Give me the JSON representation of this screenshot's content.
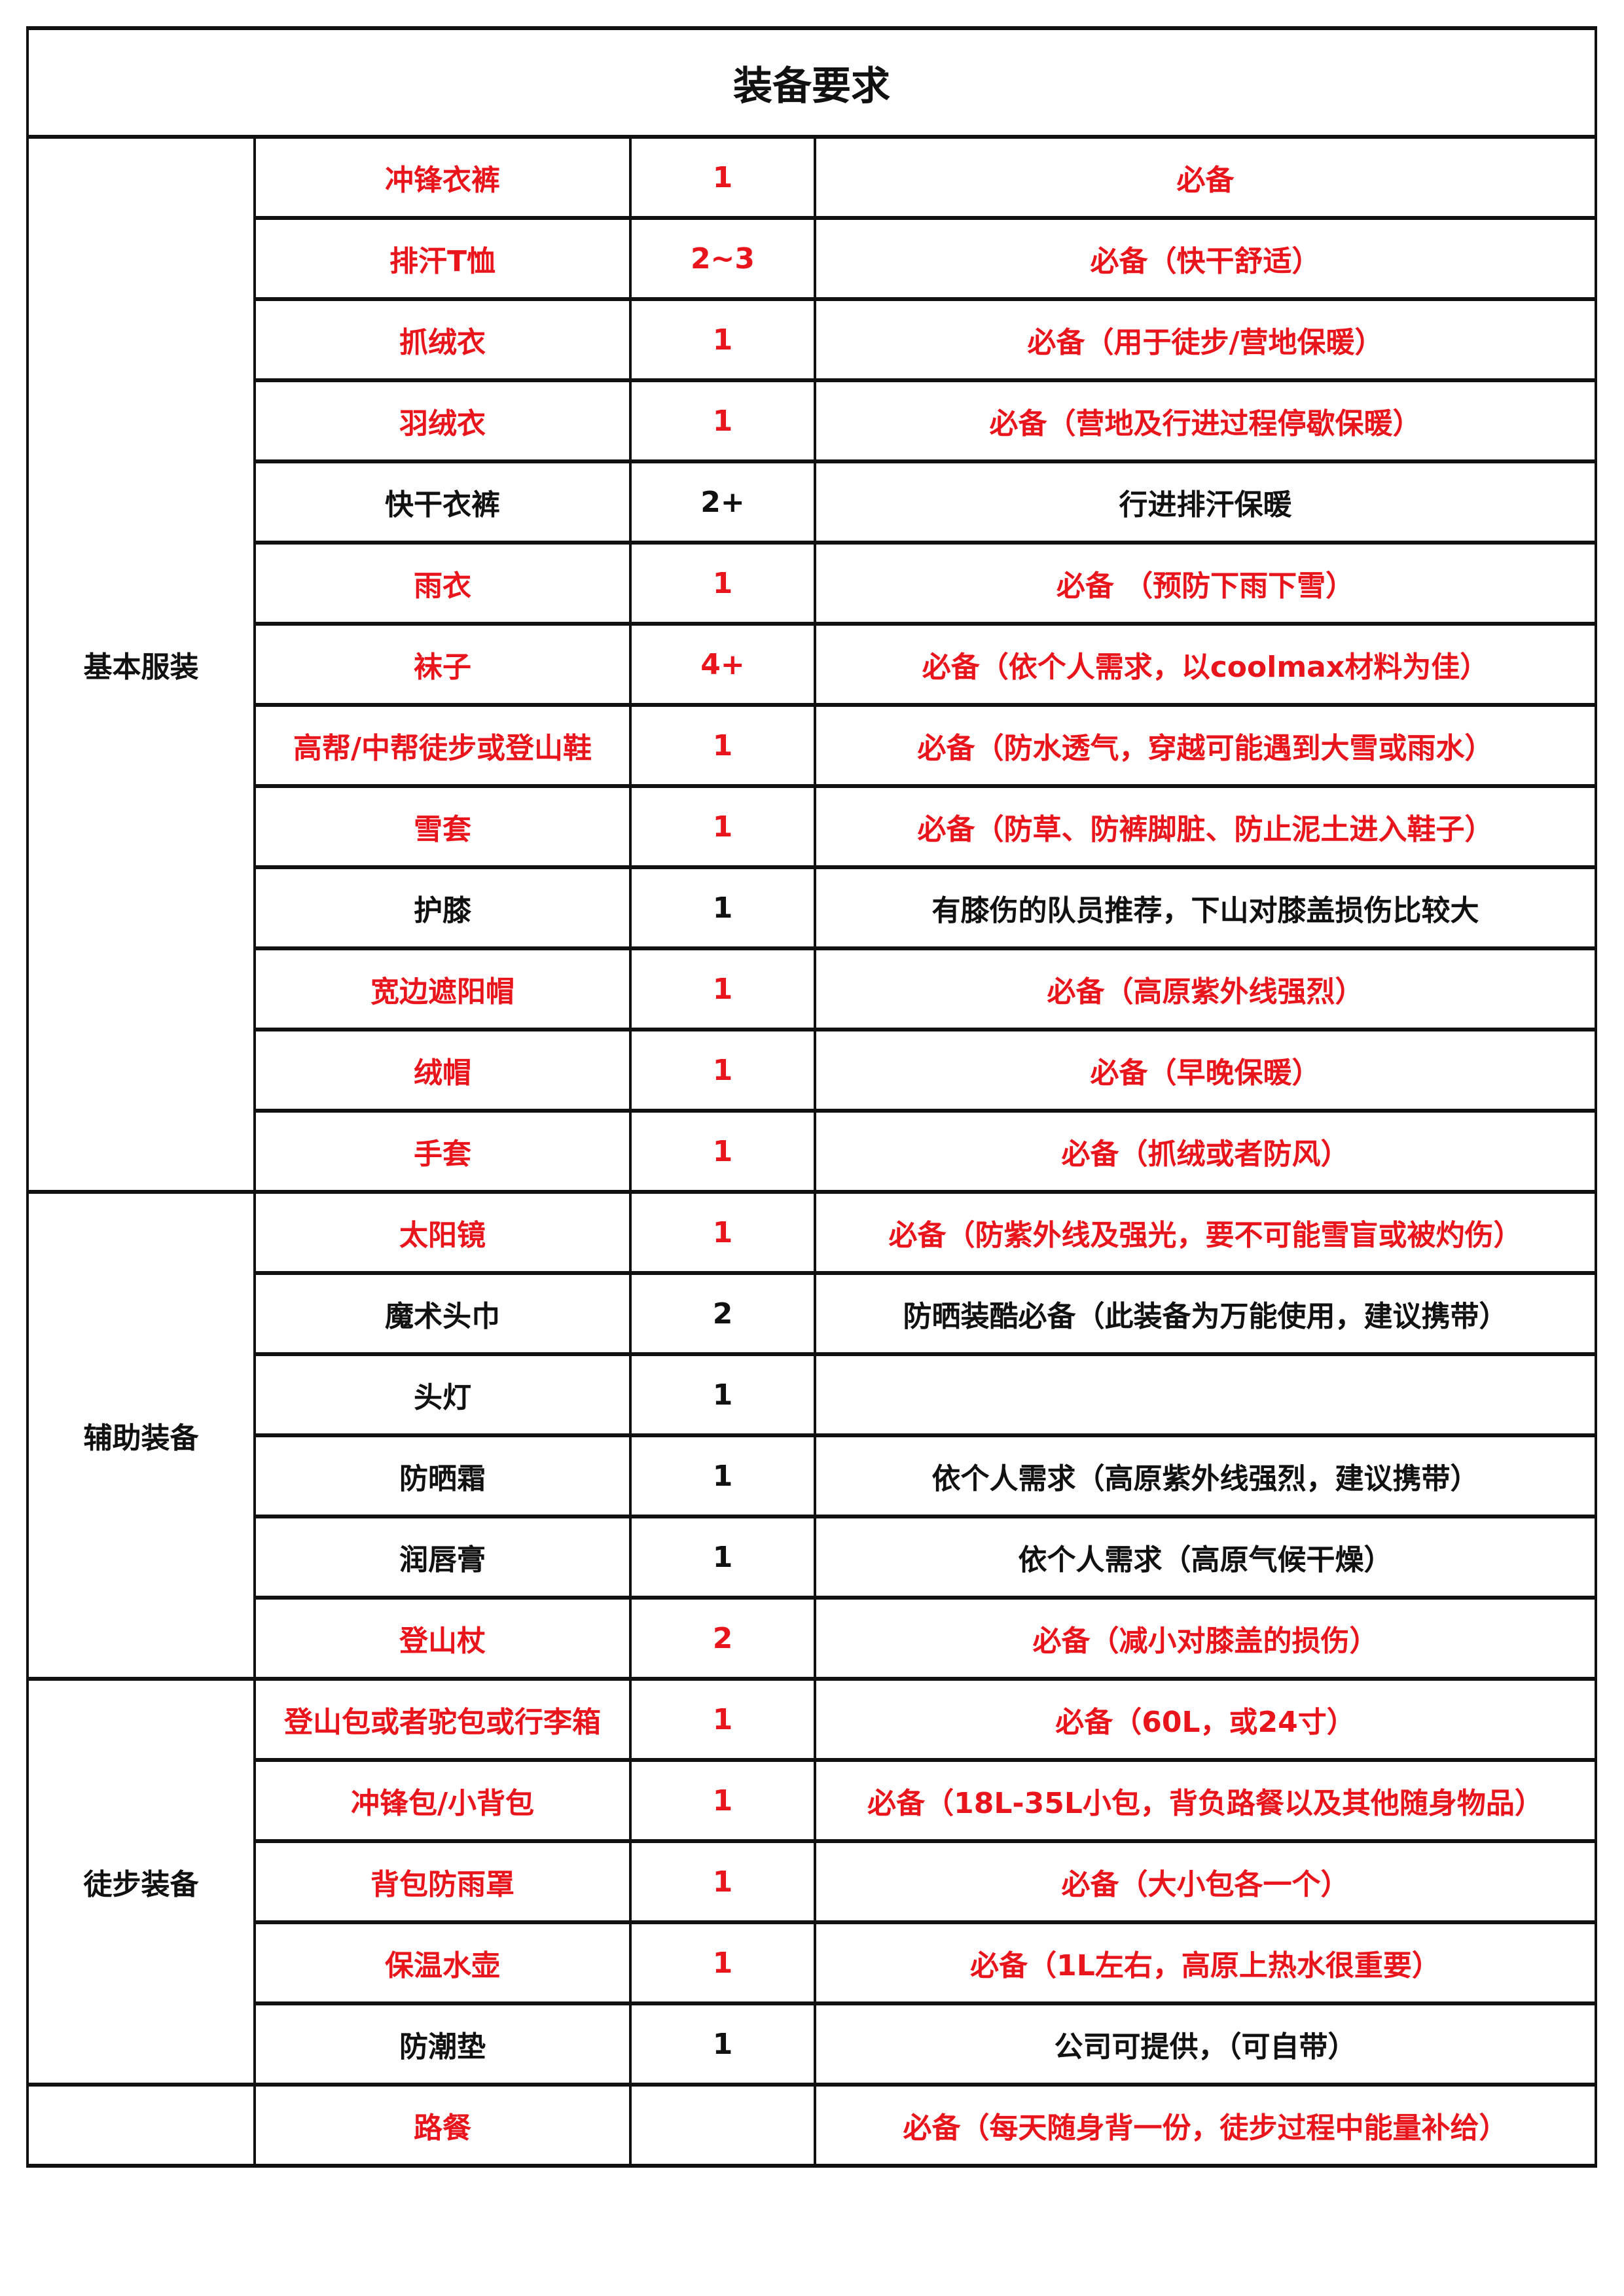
{
  "title": "装备要求",
  "colors": {
    "required": "#e8161c",
    "normal": "#111111"
  },
  "groups": [
    {
      "name": "基本服装",
      "items": [
        {
          "item": "冲锋衣裤",
          "qty": "1",
          "note": "必备",
          "required": true
        },
        {
          "item": "排汗T恤",
          "qty": "2~3",
          "note": "必备（快干舒适）",
          "required": true
        },
        {
          "item": "抓绒衣",
          "qty": "1",
          "note": "必备（用于徒步/营地保暖）",
          "required": true
        },
        {
          "item": "羽绒衣",
          "qty": "1",
          "note": "必备（营地及行进过程停歇保暖）",
          "required": true
        },
        {
          "item": "快干衣裤",
          "qty": "2+",
          "note": "行进排汗保暖",
          "required": false
        },
        {
          "item": "雨衣",
          "qty": "1",
          "note": "必备 （预防下雨下雪）",
          "required": true
        },
        {
          "item": "袜子",
          "qty": "4+",
          "note": "必备（依个人需求，以coolmax材料为佳）",
          "required": true
        },
        {
          "item": "高帮/中帮徒步或登山鞋",
          "qty": "1",
          "note": "必备（防水透气，穿越可能遇到大雪或雨水）",
          "required": true
        },
        {
          "item": "雪套",
          "qty": "1",
          "note": "必备（防草、防裤脚脏、防止泥土进入鞋子）",
          "required": true
        },
        {
          "item": "护膝",
          "qty": "1",
          "note": "有膝伤的队员推荐，下山对膝盖损伤比较大",
          "required": false
        },
        {
          "item": "宽边遮阳帽",
          "qty": "1",
          "note": "必备（高原紫外线强烈）",
          "required": true
        },
        {
          "item": "绒帽",
          "qty": "1",
          "note": "必备（早晚保暖）",
          "required": true
        },
        {
          "item": "手套",
          "qty": "1",
          "note": "必备（抓绒或者防风）",
          "required": true
        }
      ]
    },
    {
      "name": "辅助装备",
      "items": [
        {
          "item": "太阳镜",
          "qty": "1",
          "note": "必备（防紫外线及强光，要不可能雪盲或被灼伤）",
          "required": true
        },
        {
          "item": "魔术头巾",
          "qty": "2",
          "note": "防晒装酷必备（此装备为万能使用，建议携带）",
          "required": false
        },
        {
          "item": "头灯",
          "qty": "1",
          "note": "",
          "required": false
        },
        {
          "item": "防晒霜",
          "qty": "1",
          "note": "依个人需求（高原紫外线强烈，建议携带）",
          "required": false
        },
        {
          "item": "润唇膏",
          "qty": "1",
          "note": "依个人需求（高原气候干燥）",
          "required": false
        },
        {
          "item": "登山杖",
          "qty": "2",
          "note": "必备（减小对膝盖的损伤）",
          "required": true
        }
      ]
    },
    {
      "name": "徒步装备",
      "items": [
        {
          "item": "登山包或者驼包或行李箱",
          "qty": "1",
          "note": "必备（60L，或24寸）",
          "required": true
        },
        {
          "item": "冲锋包/小背包",
          "qty": "1",
          "note": "必备（18L-35L小包，背负路餐以及其他随身物品）",
          "required": true
        },
        {
          "item": "背包防雨罩",
          "qty": "1",
          "note": "必备（大小包各一个）",
          "required": true
        },
        {
          "item": "保温水壶",
          "qty": "1",
          "note": "必备（1L左右，高原上热水很重要）",
          "required": true
        },
        {
          "item": "防潮垫",
          "qty": "1",
          "note": "公司可提供，（可自带）",
          "required": false
        }
      ]
    },
    {
      "name": "",
      "items": [
        {
          "item": "路餐",
          "qty": "",
          "note": "必备（每天随身背一份，徒步过程中能量补给）",
          "required": true
        }
      ]
    }
  ]
}
